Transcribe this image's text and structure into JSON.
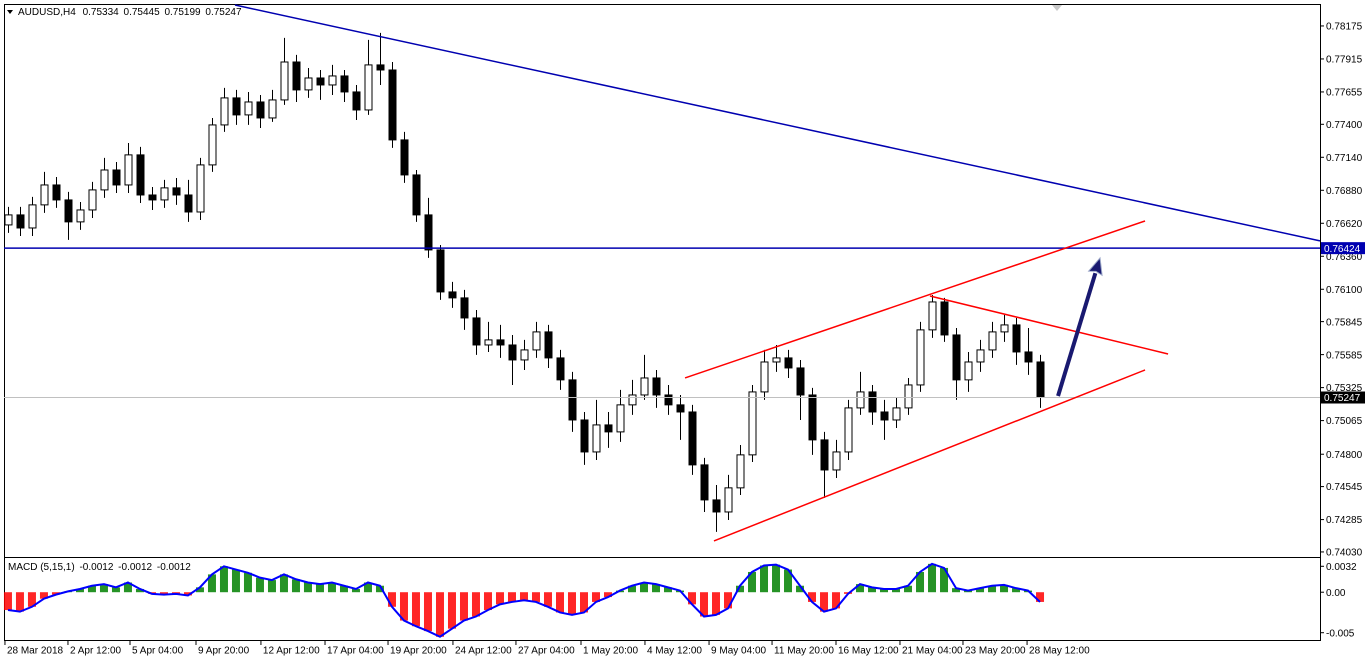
{
  "chart_data": [
    {
      "type": "candlestick",
      "title": "AUDUSD,H4",
      "last_bar": {
        "open": 0.75334,
        "high": 0.75445,
        "low": 0.75199,
        "close": 0.75247
      },
      "open": [
        0.76607,
        0.76686,
        0.76583,
        0.76765,
        0.76922,
        0.76804,
        0.76631,
        0.76725,
        0.76883,
        0.7704,
        0.76922,
        0.77159,
        0.76843,
        0.76804,
        0.76899,
        0.76843,
        0.76709,
        0.7708,
        0.77395,
        0.77608,
        0.77474,
        0.77576,
        0.7745,
        0.77592,
        0.77891,
        0.77671,
        0.77765,
        0.7771,
        0.77781,
        0.77655,
        0.77513,
        0.77868,
        0.77828,
        0.77277,
        0.77001,
        0.76686,
        0.7641,
        0.76079,
        0.76032,
        0.75874,
        0.75661,
        0.75701,
        0.75661,
        0.75543,
        0.75622,
        0.75764,
        0.75559,
        0.75386,
        0.7507,
        0.74818,
        0.75031,
        0.74976,
        0.75189,
        0.75267,
        0.75401,
        0.75267,
        0.75189,
        0.75133,
        0.74716,
        0.7444,
        0.74345,
        0.74535,
        0.74795,
        0.75291,
        0.75527,
        0.75559,
        0.7548,
        0.75267,
        0.74913,
        0.74676,
        0.74818,
        0.75165,
        0.75291,
        0.75133,
        0.7507,
        0.75165,
        0.75346,
        0.7578,
        0.76,
        0.7574,
        0.75386,
        0.75527,
        0.75622,
        0.75764,
        0.75819,
        0.75606,
        0.75527
      ],
      "high": [
        0.76749,
        0.76749,
        0.76828,
        0.77025,
        0.76985,
        0.76867,
        0.76788,
        0.76946,
        0.77135,
        0.77103,
        0.77253,
        0.77222,
        0.76906,
        0.76962,
        0.76977,
        0.76962,
        0.77135,
        0.7745,
        0.77687,
        0.77671,
        0.77655,
        0.77631,
        0.77671,
        0.78081,
        0.77947,
        0.77844,
        0.77828,
        0.77868,
        0.77828,
        0.7771,
        0.78065,
        0.7812,
        0.77891,
        0.7734,
        0.7704,
        0.7682,
        0.76449,
        0.76158,
        0.76095,
        0.75937,
        0.75843,
        0.75819,
        0.7574,
        0.75701,
        0.75843,
        0.75819,
        0.75622,
        0.75449,
        0.75133,
        0.75228,
        0.75133,
        0.75307,
        0.75386,
        0.75583,
        0.75464,
        0.75346,
        0.75267,
        0.75189,
        0.74771,
        0.74558,
        0.74637,
        0.74873,
        0.75346,
        0.75622,
        0.75661,
        0.75622,
        0.75543,
        0.75323,
        0.74976,
        0.74913,
        0.75228,
        0.75449,
        0.75346,
        0.75228,
        0.75244,
        0.75401,
        0.75843,
        0.76055,
        0.76032,
        0.75795,
        0.75606,
        0.75701,
        0.75843,
        0.75898,
        0.75874,
        0.75795,
        0.75583
      ],
      "low": [
        0.76544,
        0.7652,
        0.7652,
        0.76702,
        0.76741,
        0.76489,
        0.76568,
        0.76662,
        0.7682,
        0.76859,
        0.76859,
        0.7678,
        0.76725,
        0.76741,
        0.76765,
        0.76631,
        0.76646,
        0.77025,
        0.7734,
        0.77395,
        0.77395,
        0.77371,
        0.77419,
        0.77553,
        0.77576,
        0.77608,
        0.77592,
        0.77631,
        0.77576,
        0.77434,
        0.77474,
        0.7771,
        0.77214,
        0.76938,
        0.76631,
        0.76347,
        0.76016,
        0.75953,
        0.7578,
        0.75583,
        0.75606,
        0.75559,
        0.75346,
        0.75464,
        0.75559,
        0.7548,
        0.75307,
        0.74976,
        0.74716,
        0.74755,
        0.7485,
        0.74897,
        0.7511,
        0.75228,
        0.75165,
        0.7511,
        0.74913,
        0.74637,
        0.74345,
        0.74188,
        0.74282,
        0.74479,
        0.74739,
        0.75228,
        0.75449,
        0.75401,
        0.7507,
        0.74795,
        0.74456,
        0.74613,
        0.74755,
        0.7511,
        0.75031,
        0.74913,
        0.75007,
        0.7511,
        0.75291,
        0.75717,
        0.75685,
        0.75228,
        0.75291,
        0.75449,
        0.75559,
        0.75685,
        0.75504,
        0.75425,
        0.75165
      ],
      "close": [
        0.76686,
        0.76583,
        0.76765,
        0.76922,
        0.76804,
        0.76631,
        0.76725,
        0.76883,
        0.7704,
        0.76922,
        0.77159,
        0.76843,
        0.76804,
        0.76899,
        0.76843,
        0.76709,
        0.7708,
        0.77395,
        0.77608,
        0.77474,
        0.77576,
        0.7745,
        0.77592,
        0.77891,
        0.77671,
        0.77765,
        0.7771,
        0.77781,
        0.77655,
        0.77513,
        0.77868,
        0.77828,
        0.77277,
        0.77001,
        0.76686,
        0.7641,
        0.76079,
        0.76032,
        0.75874,
        0.75661,
        0.75701,
        0.75661,
        0.75543,
        0.75622,
        0.75764,
        0.75559,
        0.75386,
        0.7507,
        0.74818,
        0.75031,
        0.74976,
        0.75189,
        0.75267,
        0.75401,
        0.75267,
        0.75189,
        0.75133,
        0.74716,
        0.7444,
        0.74345,
        0.74535,
        0.74795,
        0.75291,
        0.75527,
        0.75559,
        0.7548,
        0.75267,
        0.74913,
        0.74676,
        0.74818,
        0.75165,
        0.75291,
        0.75133,
        0.7507,
        0.75165,
        0.75346,
        0.7578,
        0.76,
        0.7574,
        0.75386,
        0.75527,
        0.75622,
        0.75764,
        0.75819,
        0.75606,
        0.75527,
        0.75247
      ],
      "up_color": "#ffffff",
      "down_color": "#000000",
      "wick_color": "#000000",
      "xlim": [
        -0.33,
        109.33
      ],
      "xticks": [
        {
          "value": -0.25,
          "label": "28 Mar 2018"
        },
        {
          "value": 5,
          "label": "2 Apr 12:00"
        },
        {
          "value": 10.17,
          "label": "5 Apr 04:00"
        },
        {
          "value": 15.67,
          "label": "9 Apr 20:00"
        },
        {
          "value": 21.08,
          "label": "12 Apr 12:00"
        },
        {
          "value": 26.42,
          "label": "17 Apr 04:00"
        },
        {
          "value": 31.67,
          "label": "19 Apr 20:00"
        },
        {
          "value": 37.08,
          "label": "24 Apr 12:00"
        },
        {
          "value": 42.33,
          "label": "27 Apr 04:00"
        },
        {
          "value": 47.75,
          "label": "1 May 20:00"
        },
        {
          "value": 53.08,
          "label": "4 May 12:00"
        },
        {
          "value": 58.42,
          "label": "9 May 04:00"
        },
        {
          "value": 63.67,
          "label": "11 May 20:00"
        },
        {
          "value": 69,
          "label": "16 May 12:00"
        },
        {
          "value": 74.33,
          "label": "21 May 04:00"
        },
        {
          "value": 79.58,
          "label": "23 May 20:00"
        },
        {
          "value": 84.92,
          "label": "28 May 12:00"
        }
      ],
      "ylim": [
        0.73998,
        0.78348
      ],
      "yticks": [
        0.78175,
        0.77915,
        0.77655,
        {
          "value": 0.774,
          "label": "0.77400"
        },
        {
          "value": 0.7714,
          "label": "0.77140"
        },
        {
          "value": 0.7688,
          "label": "0.76880"
        },
        {
          "value": 0.7662,
          "label": "0.76620"
        },
        {
          "value": 0.7636,
          "label": "0.76360"
        },
        {
          "value": 0.761,
          "label": "0.76100"
        },
        0.75845,
        0.75585,
        0.75325,
        0.75065,
        {
          "value": 0.748,
          "label": "0.74800"
        },
        0.74545,
        0.74285,
        {
          "value": 0.7403,
          "label": "0.74030"
        }
      ],
      "level": 0.76424,
      "level_color": "#0000b0",
      "last_price": 0.75247,
      "last_price_color": "#000000",
      "lines": [
        {
          "x": [
            18.92,
            109.33
          ],
          "y": [
            0.7834,
            0.76481
          ],
          "color": "#0000b0"
        },
        {
          "x": [
            56.42,
            94.75
          ],
          "y": [
            0.75401,
            0.76638
          ],
          "color": "#ff0000"
        },
        {
          "x": [
            58.83,
            94.75
          ],
          "y": [
            0.74117,
            0.75464
          ],
          "color": "#ff0000"
        },
        {
          "x": [
            76.83,
            96.67
          ],
          "y": [
            0.76047,
            0.7559
          ],
          "color": "#ff0000"
        }
      ],
      "arrow": {
        "x": [
          87.5,
          91
        ],
        "y": [
          0.75259,
          0.76347
        ],
        "color": "#191970"
      }
    },
    {
      "type": "histogram",
      "title": "MACD (5,15,1)",
      "header_values": [
        -0.0012,
        -0.0012,
        -0.0012
      ],
      "values": [
        -0.0022,
        -0.0024,
        -0.0018,
        -0.0008,
        -0.0003,
        0.0001,
        0.0004,
        0.0008,
        0.001,
        0.0006,
        0.0012,
        0.0004,
        -0.0002,
        -0.0003,
        -0.0002,
        -0.0004,
        0.0006,
        0.0022,
        0.0032,
        0.0028,
        0.0024,
        0.0018,
        0.0015,
        0.0022,
        0.0016,
        0.0012,
        0.001,
        0.0012,
        0.0008,
        0.0004,
        0.0012,
        0.0008,
        -0.0018,
        -0.0035,
        -0.0042,
        -0.0048,
        -0.0055,
        -0.0045,
        -0.0035,
        -0.003,
        -0.0022,
        -0.0015,
        -0.0012,
        -0.001,
        -0.0012,
        -0.0018,
        -0.0025,
        -0.0028,
        -0.0025,
        -0.0012,
        -0.0006,
        0.0002,
        0.0008,
        0.0012,
        0.001,
        0.0006,
        0.0002,
        -0.0015,
        -0.003,
        -0.0028,
        -0.002,
        0.0008,
        0.0025,
        0.0033,
        0.0034,
        0.0028,
        0.0008,
        -0.0012,
        -0.0024,
        -0.002,
        -0.0002,
        0.001,
        0.0006,
        0.0004,
        0.0004,
        0.0008,
        0.0025,
        0.0035,
        0.003,
        0.0005,
        0.0002,
        0.0005,
        0.0008,
        0.0009,
        0.0005,
        0.0002,
        -0.0012
      ],
      "positive_color": "#008000",
      "negative_color": "#ff0000",
      "line_color": "#0000ff",
      "ylim": [
        -0.0059,
        0.0041
      ],
      "yticks": [
        0.0032,
        {
          "value": 0,
          "label": "0.00"
        },
        -0.005
      ]
    }
  ]
}
